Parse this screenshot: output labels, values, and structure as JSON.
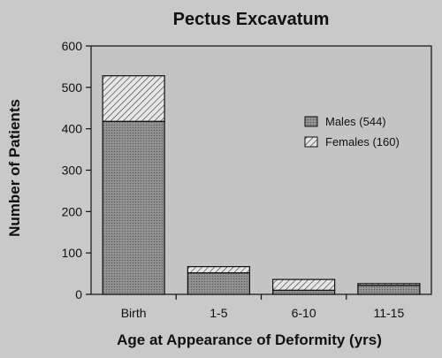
{
  "chart_data": {
    "type": "bar",
    "stacked": true,
    "title": "Pectus Excavatum",
    "xlabel": "Age at Appearance of Deformity (yrs)",
    "ylabel": "Number of Patients",
    "categories": [
      "Birth",
      "1-5",
      "6-10",
      "11-15"
    ],
    "series": [
      {
        "name": "Males (544)",
        "values": [
          418,
          52,
          10,
          22
        ],
        "pattern": "dotted"
      },
      {
        "name": "Females (160)",
        "values": [
          110,
          15,
          26,
          4
        ],
        "pattern": "hatched"
      }
    ],
    "ylim": [
      0,
      600
    ],
    "yticks": [
      0,
      100,
      200,
      300,
      400,
      500,
      600
    ],
    "grid": false,
    "legend_position": "right",
    "colors": {
      "background": "#c9c9c9",
      "plot": "#c4c4c4",
      "male_fill": "#8a8a8a",
      "female_fill": "#e6e6e6",
      "ink": "#111111"
    }
  }
}
